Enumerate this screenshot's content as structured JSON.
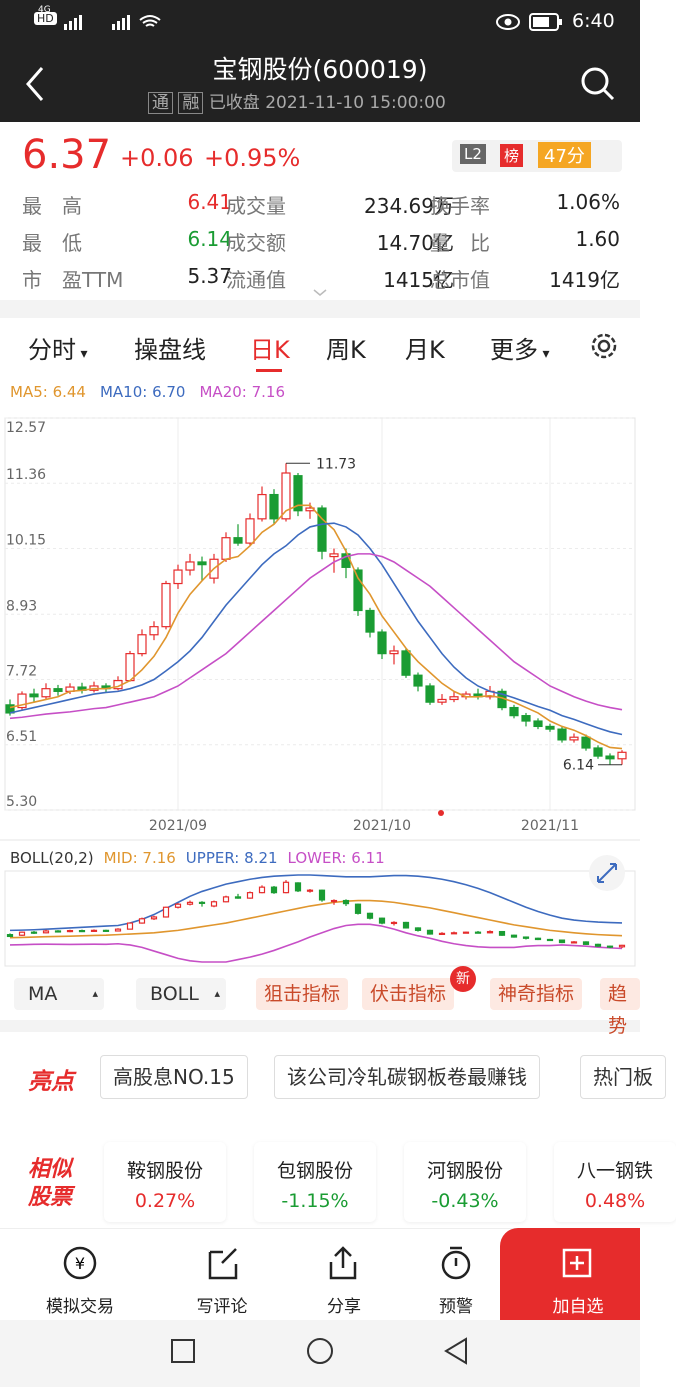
{
  "status_bar": {
    "time": "6:40",
    "network": "4G"
  },
  "header": {
    "title": "宝钢股份(600019)",
    "badges": [
      "通",
      "融"
    ],
    "state": "已收盘",
    "datetime": "2021-11-10 15:00:00"
  },
  "quote": {
    "price": "6.37",
    "change": "+0.06",
    "change_pct": "+0.95%",
    "badges": [
      "L2",
      "榜",
      "47分"
    ],
    "stats": [
      [
        [
          "最　高",
          "6.41"
        ],
        [
          "成交量",
          "234.69万"
        ],
        [
          "换手率",
          "1.06%"
        ]
      ],
      [
        [
          "最　低",
          "6.14"
        ],
        [
          "成交额",
          "14.70亿"
        ],
        [
          "量　比",
          "1.60"
        ]
      ],
      [
        [
          "市　盈TTM",
          "5.37"
        ],
        [
          "流通值",
          "1415亿"
        ],
        [
          "总市值",
          "1419亿"
        ]
      ]
    ]
  },
  "tabs": [
    "分时",
    "操盘线",
    "日K",
    "周K",
    "月K",
    "更多"
  ],
  "kline": {
    "legend": [
      "MA5: 6.44",
      "MA10: 6.70",
      "MA20: 7.16"
    ],
    "yticks": [
      {
        "value": 12.57,
        "label": "12.57"
      },
      {
        "value": 11.36,
        "label": "11.36"
      },
      {
        "value": 10.15,
        "label": "10.15"
      },
      {
        "value": 8.93,
        "label": "8.93"
      },
      {
        "value": 7.72,
        "label": "7.72"
      },
      {
        "value": 6.51,
        "label": "6.51"
      },
      {
        "value": 5.3,
        "label": "5.30"
      }
    ],
    "ylim": [
      5.3,
      12.57
    ],
    "max_label": 11.73,
    "min_label": 6.14,
    "categories": [
      null,
      null,
      null,
      null,
      null,
      null,
      null,
      null,
      null,
      null,
      null,
      null,
      null,
      null,
      "2021/09",
      null,
      null,
      null,
      null,
      null,
      null,
      null,
      null,
      null,
      null,
      null,
      null,
      null,
      null,
      null,
      null,
      "2021/10",
      null,
      null,
      null,
      null,
      null,
      null,
      null,
      null,
      null,
      null,
      null,
      null,
      null,
      "2021/11",
      null,
      null,
      null,
      null,
      null,
      null
    ],
    "candles": [
      [
        7.25,
        7.1,
        7.35,
        7.05
      ],
      [
        7.2,
        7.45,
        7.5,
        7.15
      ],
      [
        7.45,
        7.4,
        7.55,
        7.3
      ],
      [
        7.4,
        7.55,
        7.65,
        7.35
      ],
      [
        7.55,
        7.5,
        7.62,
        7.42
      ],
      [
        7.5,
        7.58,
        7.65,
        7.45
      ],
      [
        7.58,
        7.52,
        7.66,
        7.46
      ],
      [
        7.52,
        7.6,
        7.68,
        7.48
      ],
      [
        7.6,
        7.55,
        7.65,
        7.48
      ],
      [
        7.55,
        7.7,
        7.78,
        7.52
      ],
      [
        7.7,
        8.2,
        8.25,
        7.68
      ],
      [
        8.2,
        8.55,
        8.65,
        8.15
      ],
      [
        8.55,
        8.7,
        8.8,
        8.45
      ],
      [
        8.7,
        9.5,
        9.55,
        8.65
      ],
      [
        9.5,
        9.75,
        9.85,
        9.4
      ],
      [
        9.75,
        9.9,
        10.05,
        9.65
      ],
      [
        9.9,
        9.85,
        10,
        9.55
      ],
      [
        9.6,
        9.95,
        10.05,
        9.5
      ],
      [
        9.95,
        10.35,
        10.45,
        9.9
      ],
      [
        10.35,
        10.25,
        10.6,
        10.2
      ],
      [
        10.25,
        10.7,
        10.8,
        10.2
      ],
      [
        10.7,
        11.15,
        11.3,
        10.65
      ],
      [
        11.15,
        10.7,
        11.25,
        10.6
      ],
      [
        10.7,
        11.55,
        11.73,
        10.65
      ],
      [
        11.5,
        10.85,
        11.55,
        10.75
      ],
      [
        10.85,
        10.9,
        11,
        10.7
      ],
      [
        10.9,
        10.1,
        10.95,
        9.95
      ],
      [
        10,
        10.05,
        10.15,
        9.7
      ],
      [
        10.05,
        9.8,
        10.15,
        9.6
      ],
      [
        9.75,
        9,
        9.8,
        8.9
      ],
      [
        9,
        8.6,
        9.05,
        8.5
      ],
      [
        8.6,
        8.2,
        8.65,
        8.1
      ],
      [
        8.2,
        8.25,
        8.35,
        8
      ],
      [
        8.25,
        7.8,
        8.3,
        7.75
      ],
      [
        7.8,
        7.6,
        7.85,
        7.5
      ],
      [
        7.6,
        7.3,
        7.65,
        7.25
      ],
      [
        7.3,
        7.35,
        7.45,
        7.25
      ],
      [
        7.35,
        7.4,
        7.5,
        7.3
      ],
      [
        7.4,
        7.45,
        7.5,
        7.35
      ],
      [
        7.45,
        7.4,
        7.55,
        7.35
      ],
      [
        7.4,
        7.5,
        7.6,
        7.35
      ],
      [
        7.5,
        7.2,
        7.55,
        7.15
      ],
      [
        7.2,
        7.05,
        7.25,
        7
      ],
      [
        7.05,
        6.95,
        7.1,
        6.85
      ],
      [
        6.95,
        6.85,
        7,
        6.8
      ],
      [
        6.85,
        6.8,
        6.9,
        6.75
      ],
      [
        6.8,
        6.6,
        6.85,
        6.55
      ],
      [
        6.6,
        6.65,
        6.72,
        6.55
      ],
      [
        6.65,
        6.45,
        6.7,
        6.4
      ],
      [
        6.45,
        6.3,
        6.5,
        6.25
      ],
      [
        6.3,
        6.25,
        6.35,
        6.14
      ],
      [
        6.25,
        6.37,
        6.41,
        6.14
      ]
    ],
    "series": [
      {
        "name": "MA5",
        "color": "#e0962e",
        "values": [
          7.2,
          7.25,
          7.3,
          7.35,
          7.4,
          7.5,
          7.52,
          7.55,
          7.55,
          7.59,
          7.7,
          7.9,
          8.15,
          8.5,
          8.95,
          9.3,
          9.55,
          9.78,
          9.95,
          10,
          10.2,
          10.45,
          10.6,
          10.85,
          10.95,
          10.95,
          10.7,
          10.5,
          10.1,
          9.6,
          9.3,
          8.9,
          8.6,
          8.3,
          8.05,
          7.85,
          7.65,
          7.5,
          7.4,
          7.4,
          7.42,
          7.38,
          7.3,
          7.2,
          7.1,
          6.95,
          6.85,
          6.78,
          6.68,
          6.56,
          6.46,
          6.44
        ]
      },
      {
        "name": "MA10",
        "color": "#3d6bbf",
        "values": [
          7.1,
          7.15,
          7.2,
          7.25,
          7.3,
          7.35,
          7.4,
          7.45,
          7.48,
          7.5,
          7.55,
          7.62,
          7.72,
          7.88,
          8.05,
          8.25,
          8.5,
          8.8,
          9.1,
          9.35,
          9.6,
          9.85,
          10.05,
          10.2,
          10.4,
          10.55,
          10.6,
          10.62,
          10.55,
          10.4,
          10.15,
          9.85,
          9.5,
          9.15,
          8.8,
          8.5,
          8.2,
          7.95,
          7.75,
          7.6,
          7.5,
          7.45,
          7.38,
          7.3,
          7.22,
          7.15,
          7.05,
          6.98,
          6.9,
          6.82,
          6.75,
          6.7
        ]
      },
      {
        "name": "MA20",
        "color": "#c64fc6",
        "values": [
          7,
          7.02,
          7.05,
          7.08,
          7.1,
          7.12,
          7.15,
          7.18,
          7.2,
          7.25,
          7.3,
          7.35,
          7.4,
          7.5,
          7.6,
          7.75,
          7.9,
          8.05,
          8.2,
          8.4,
          8.6,
          8.8,
          9,
          9.2,
          9.4,
          9.6,
          9.75,
          9.9,
          10,
          10.05,
          10.05,
          10,
          9.9,
          9.75,
          9.6,
          9.45,
          9.25,
          9.05,
          8.85,
          8.65,
          8.45,
          8.25,
          8.05,
          7.9,
          7.75,
          7.6,
          7.5,
          7.4,
          7.32,
          7.25,
          7.2,
          7.16
        ]
      }
    ]
  },
  "boll": {
    "legend": [
      "BOLL(20,2)",
      "MID: 7.16",
      "UPPER: 8.21",
      "LOWER: 6.11"
    ],
    "series": [
      {
        "name": "MID",
        "color": "#e0962e",
        "values": [
          7,
          7.02,
          7.05,
          7.08,
          7.1,
          7.12,
          7.15,
          7.18,
          7.2,
          7.25,
          7.3,
          7.35,
          7.4,
          7.5,
          7.6,
          7.75,
          7.9,
          8.05,
          8.2,
          8.4,
          8.6,
          8.8,
          9,
          9.2,
          9.4,
          9.6,
          9.75,
          9.9,
          10,
          10.05,
          10.05,
          10,
          9.9,
          9.75,
          9.6,
          9.45,
          9.25,
          9.05,
          8.85,
          8.65,
          8.45,
          8.25,
          8.05,
          7.9,
          7.75,
          7.6,
          7.5,
          7.4,
          7.32,
          7.25,
          7.2,
          7.16
        ]
      },
      {
        "name": "UPPER",
        "color": "#3d6bbf",
        "values": [
          7.6,
          7.62,
          7.65,
          7.7,
          7.75,
          7.8,
          7.85,
          7.9,
          7.95,
          8,
          8.2,
          8.5,
          8.9,
          9.4,
          9.9,
          10.4,
          10.8,
          11.1,
          11.4,
          11.6,
          11.8,
          11.95,
          12.05,
          12.1,
          12.15,
          12.15,
          12.1,
          12.05,
          12,
          12,
          12,
          12.05,
          12.1,
          12.1,
          12.05,
          11.95,
          11.8,
          11.6,
          11.35,
          11.05,
          10.7,
          10.3,
          9.9,
          9.5,
          9.15,
          8.85,
          8.6,
          8.45,
          8.35,
          8.28,
          8.24,
          8.21
        ]
      },
      {
        "name": "LOWER",
        "color": "#c64fc6",
        "values": [
          6.4,
          6.42,
          6.45,
          6.46,
          6.45,
          6.44,
          6.45,
          6.46,
          6.45,
          6.5,
          6.4,
          6.2,
          5.9,
          5.6,
          5.3,
          5.1,
          5,
          5,
          5,
          5.2,
          5.4,
          5.65,
          5.95,
          6.3,
          6.65,
          7.05,
          7.4,
          7.75,
          8,
          8.1,
          8.1,
          7.95,
          7.7,
          7.4,
          7.15,
          6.95,
          6.7,
          6.5,
          6.35,
          6.25,
          6.2,
          6.2,
          6.2,
          6.3,
          6.35,
          6.35,
          6.4,
          6.35,
          6.3,
          6.22,
          6.16,
          6.11
        ]
      }
    ]
  },
  "indicators": [
    "MA",
    "BOLL",
    "狙击指标",
    "伏击指标",
    "神奇指标",
    "趋势"
  ],
  "new_badge": "新",
  "highlights": {
    "title": "亮点",
    "tags": [
      "高股息NO.15",
      "该公司冷轧碳钢板卷最赚钱",
      "热门板"
    ]
  },
  "similar": {
    "title": "相似股票",
    "items": [
      {
        "name": "鞍钢股份",
        "pct": "0.27%"
      },
      {
        "name": "包钢股份",
        "pct": "-1.15%"
      },
      {
        "name": "河钢股份",
        "pct": "-0.43%"
      },
      {
        "name": "八一钢铁",
        "pct": "0.48%"
      }
    ]
  },
  "bottom_nav": [
    "模拟交易",
    "写评论",
    "分享",
    "预警",
    "加自选"
  ]
}
